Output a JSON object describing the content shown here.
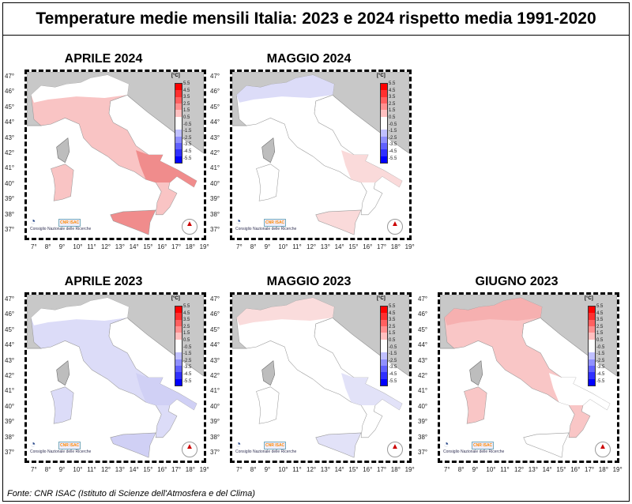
{
  "title": "Temperature medie mensili Italia: 2023 e 2024 rispetto media 1991-2020",
  "source": "Fonte: CNR ISAC (Istituto di Scienze dell'Atmosfera e del Clima)",
  "colorbar": {
    "unit": "[°C]",
    "labels": [
      "5.5",
      "4.5",
      "3.5",
      "2.5",
      "1.5",
      "0.5",
      "-0.5",
      "-1.5",
      "-2.5",
      "-3.5",
      "-4.5",
      "-5.5"
    ],
    "colors": [
      "#ff0000",
      "#ff3030",
      "#ff6060",
      "#ff9090",
      "#ffc0c0",
      "#ffffff",
      "#ffffff",
      "#c0c0ff",
      "#9090ff",
      "#6060ff",
      "#3030ff",
      "#0000ff"
    ]
  },
  "lat_labels": [
    "47°",
    "46°",
    "45°",
    "44°",
    "43°",
    "42°",
    "41°",
    "40°",
    "39°",
    "38°",
    "37°"
  ],
  "lon_labels": [
    "7°",
    "8°",
    "9°",
    "10°",
    "11°",
    "12°",
    "13°",
    "14°",
    "15°",
    "16°",
    "17°",
    "18°",
    "19°"
  ],
  "logos": {
    "cnr": "Consiglio Nazionale delle Ricerche",
    "isac": "CNR ISAC"
  },
  "panels": [
    {
      "title": "APRILE 2024",
      "fill": "#f9c4c4",
      "hot": "#f08c8c",
      "north": "#ffffff"
    },
    {
      "title": "MAGGIO 2024",
      "fill": "#ffffff",
      "hot": "#fadada",
      "north": "#dcdcf8"
    },
    {
      "title": "APRILE 2023",
      "fill": "#dcdcf8",
      "hot": "#d0d0f5",
      "north": "#ffffff"
    },
    {
      "title": "MAGGIO 2023",
      "fill": "#ffffff",
      "hot": "#e2e2f8",
      "north": "#fadcdc"
    },
    {
      "title": "GIUGNO 2023",
      "fill": "#f9c6c6",
      "hot": "#ffffff",
      "north": "#f6b0b0"
    }
  ]
}
